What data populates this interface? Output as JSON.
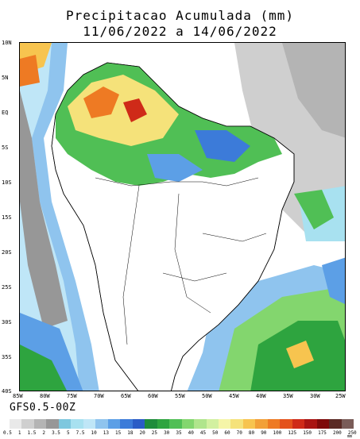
{
  "title_line1": "Precipitacao Acumulada (mm)",
  "title_line2": "11/06/2022 a 14/06/2022",
  "model_label": "GFS0.5-00Z",
  "lat_labels": [
    "10N",
    "5N",
    "EQ",
    "5S",
    "10S",
    "15S",
    "20S",
    "25S",
    "30S",
    "35S",
    "40S"
  ],
  "lon_labels": [
    "85W",
    "80W",
    "75W",
    "70W",
    "65W",
    "60W",
    "55W",
    "50W",
    "45W",
    "40W",
    "35W",
    "30W",
    "25W"
  ],
  "colorbar_ticks": [
    "0.5",
    "1",
    "1.5",
    "2",
    "3.5",
    "5",
    "7.5",
    "10",
    "13",
    "15",
    "18",
    "20",
    "25",
    "30",
    "35",
    "40",
    "45",
    "50",
    "60",
    "70",
    "80",
    "90",
    "100",
    "125",
    "150",
    "175",
    "200",
    "250"
  ],
  "colorbar_colors": [
    "#e9e9e9",
    "#cfcfcf",
    "#b4b4b4",
    "#979797",
    "#7ec7de",
    "#a8e1f0",
    "#bfe6f7",
    "#8fc4ee",
    "#5c9fe6",
    "#3c7bd9",
    "#2a5cc6",
    "#1e8c3b",
    "#2ea43f",
    "#50bf55",
    "#83d66e",
    "#b0e58c",
    "#d2f0a0",
    "#f5f5a8",
    "#f5e27a",
    "#f7c44f",
    "#f2a038",
    "#ee7a23",
    "#e4521c",
    "#cf2a18",
    "#a91412",
    "#7e0a0a",
    "#5a2a24",
    "#7a5c58"
  ],
  "unit": "mm"
}
